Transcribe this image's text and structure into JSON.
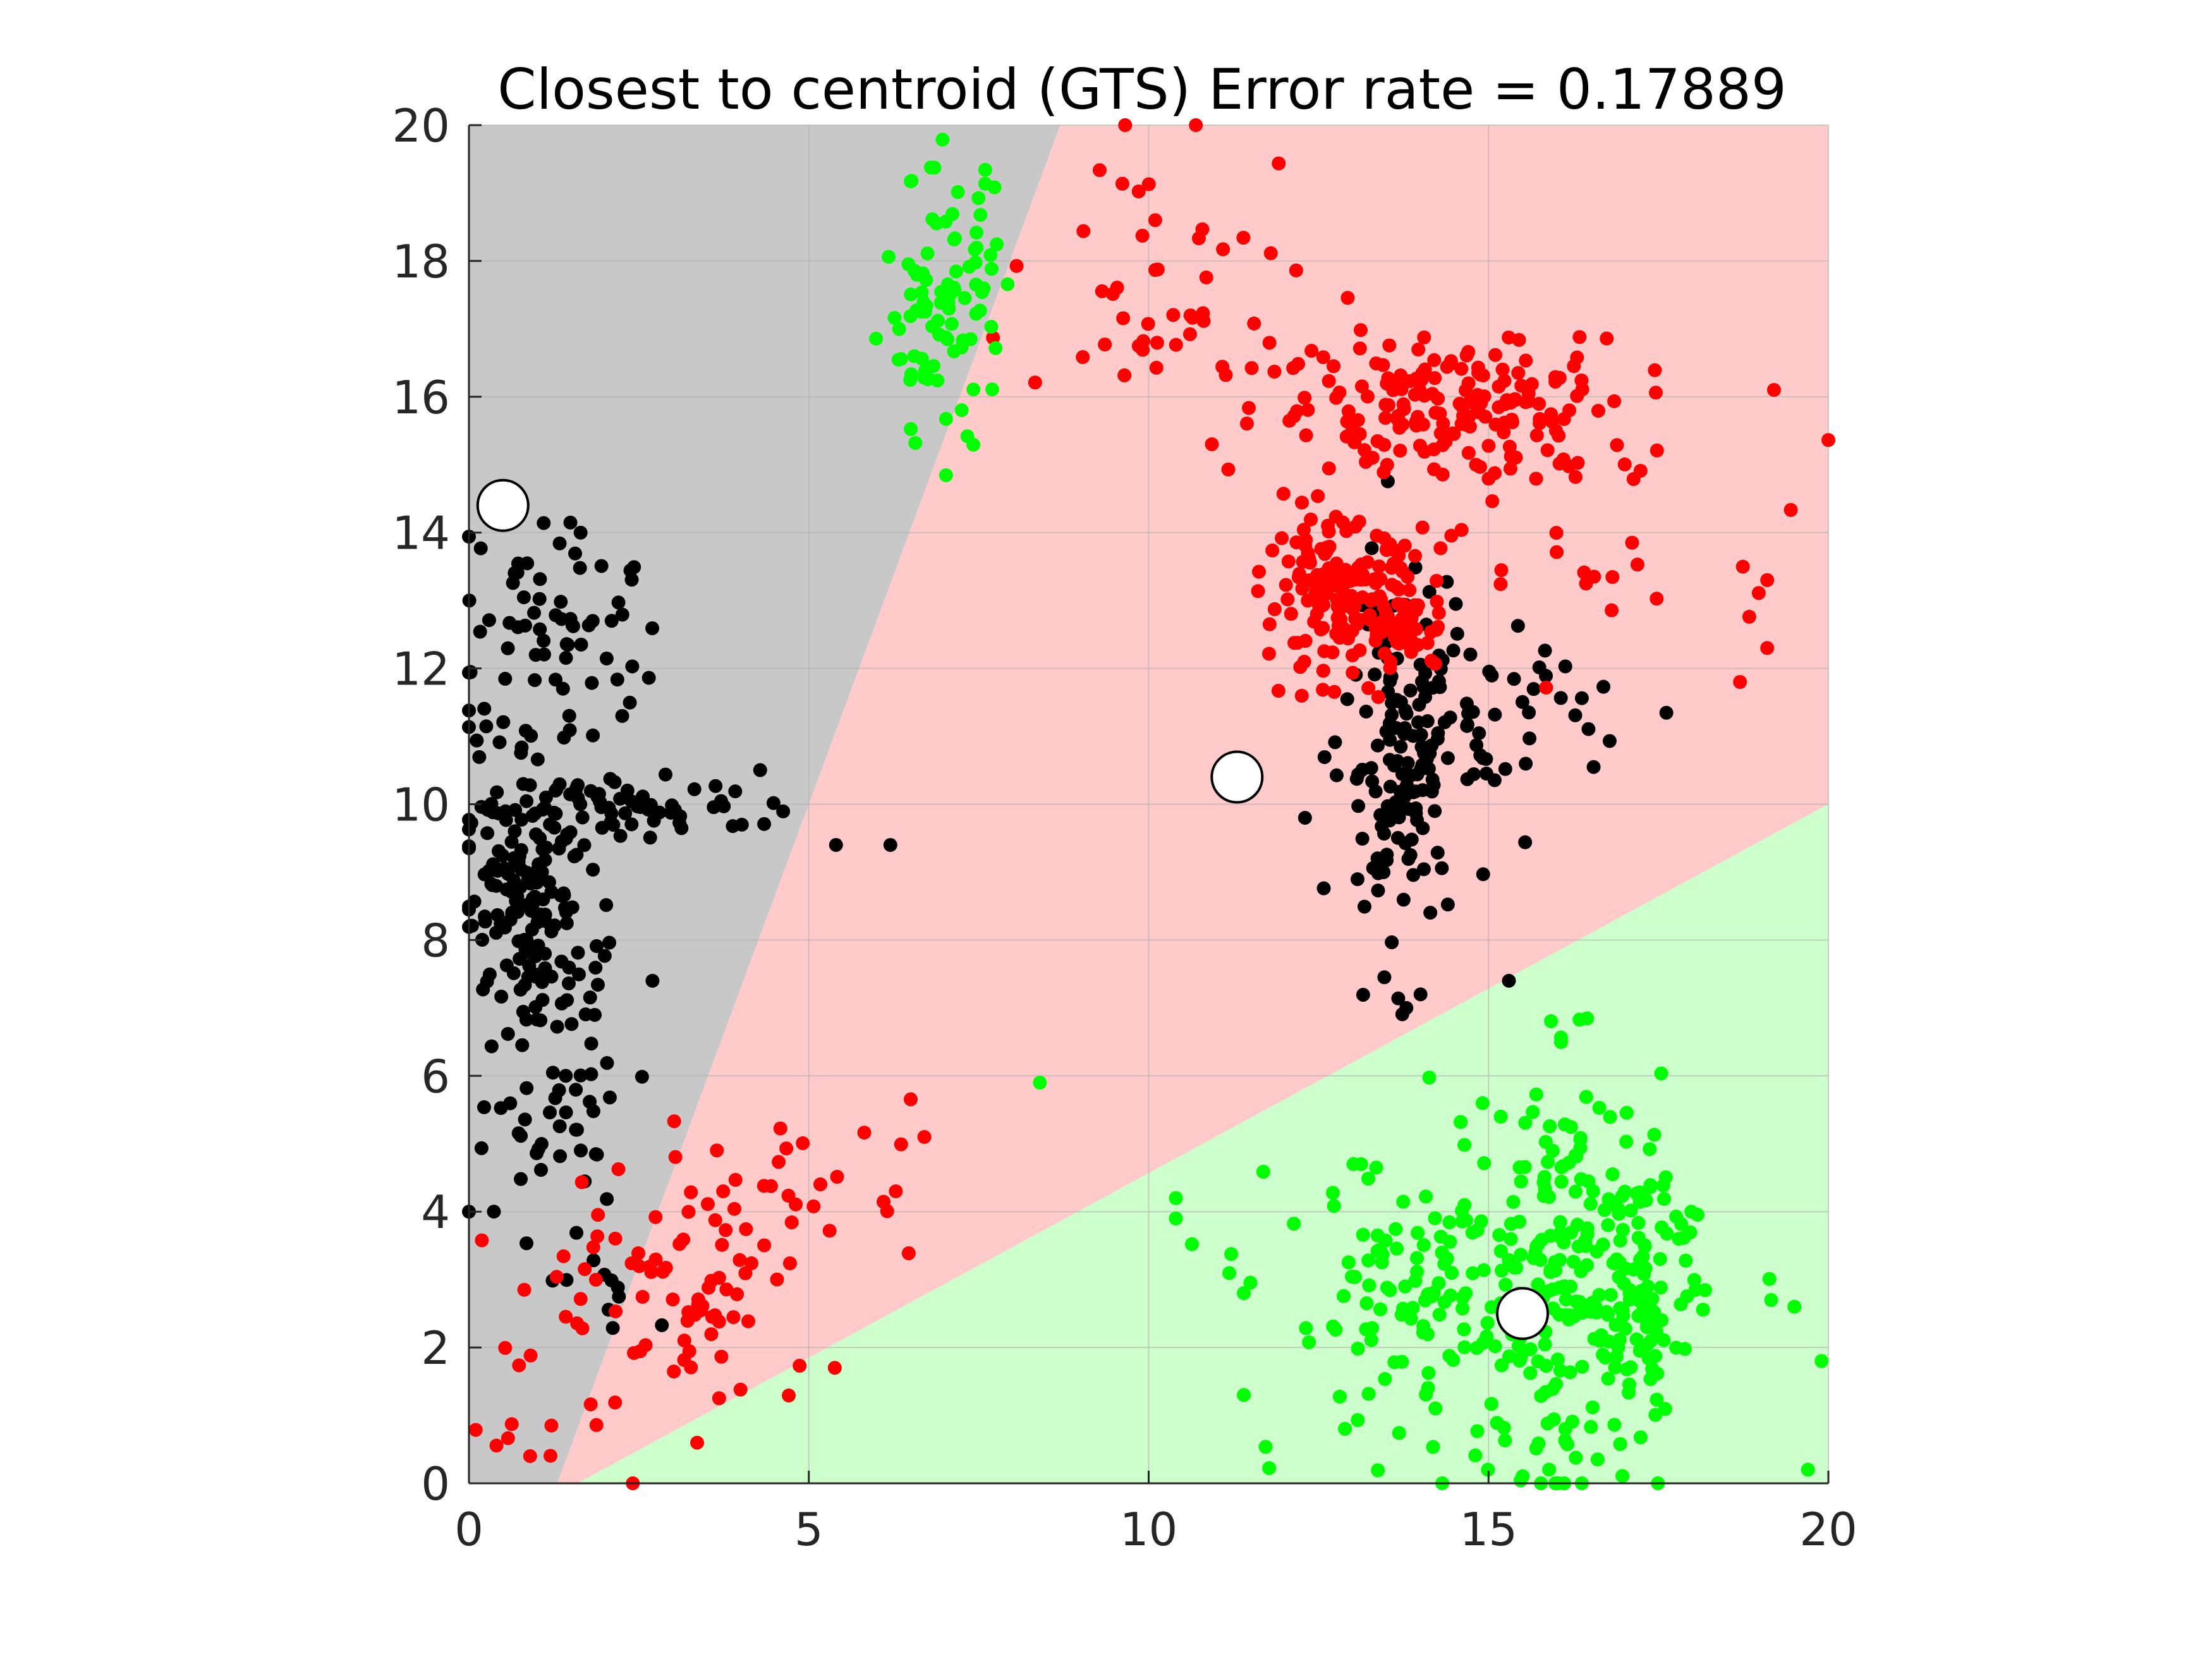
{
  "chart_data": {
    "type": "scatter",
    "title": "Closest to centroid (GTS) Error rate = 0.17889",
    "xlabel": "",
    "ylabel": "",
    "xlim": [
      0,
      20
    ],
    "ylim": [
      0,
      20
    ],
    "xticks": [
      "0",
      "5",
      "10",
      "15",
      "20"
    ],
    "yticks": [
      "0",
      "2",
      "4",
      "6",
      "8",
      "10",
      "12",
      "14",
      "16",
      "18",
      "20"
    ],
    "grid": true,
    "colors": {
      "region_gray": "#c8c8c8",
      "region_red": "#ffcaca",
      "region_green": "#ccffcc",
      "black_class": "#000000",
      "red_class": "#ff0000",
      "green_class": "#00ff00",
      "centroid_fill": "#ffffff",
      "grid": "#b0b0b0",
      "axis": "#262626"
    },
    "decision_regions": [
      {
        "color": "gray",
        "polygon": [
          [
            0,
            0
          ],
          [
            1.3,
            0
          ],
          [
            8.7,
            20
          ],
          [
            0,
            20
          ]
        ]
      },
      {
        "color": "red",
        "polygon": [
          [
            1.3,
            0
          ],
          [
            1.6,
            0
          ],
          [
            20,
            10
          ],
          [
            20,
            20
          ],
          [
            8.7,
            20
          ]
        ]
      },
      {
        "color": "green",
        "polygon": [
          [
            1.6,
            0
          ],
          [
            20,
            0
          ],
          [
            20,
            10
          ]
        ]
      }
    ],
    "centroids": [
      {
        "x": 0.5,
        "y": 14.4
      },
      {
        "x": 11.3,
        "y": 10.4
      },
      {
        "x": 15.5,
        "y": 2.5
      }
    ],
    "clusters": [
      {
        "class": "black",
        "n": 150,
        "center": [
          0.9,
          8.6
        ],
        "spread": [
          0.5,
          0.8
        ]
      },
      {
        "class": "black",
        "n": 60,
        "center": [
          2.6,
          10.0
        ],
        "spread": [
          1.2,
          0.25
        ]
      },
      {
        "class": "black",
        "n": 80,
        "center": [
          1.0,
          12.3
        ],
        "spread": [
          0.7,
          1.0
        ]
      },
      {
        "class": "black",
        "n": 55,
        "center": [
          1.2,
          5.8
        ],
        "spread": [
          0.6,
          0.9
        ]
      },
      {
        "class": "black",
        "n": 12,
        "center": [
          1.8,
          3.0
        ],
        "spread": [
          0.4,
          0.6
        ]
      },
      {
        "class": "black",
        "n": 140,
        "center": [
          13.7,
          10.6
        ],
        "spread": [
          0.45,
          1.4
        ]
      },
      {
        "class": "black",
        "n": 55,
        "center": [
          15.0,
          11.3
        ],
        "spread": [
          1.0,
          0.7
        ]
      },
      {
        "class": "red",
        "n": 45,
        "center": [
          13.8,
          12.6
        ],
        "spread": [
          0.3,
          0.3
        ]
      },
      {
        "class": "red",
        "n": 160,
        "center": [
          12.8,
          13.0
        ],
        "spread": [
          0.55,
          0.55
        ]
      },
      {
        "class": "red",
        "n": 190,
        "center": [
          14.5,
          15.9
        ],
        "spread": [
          1.4,
          0.55
        ]
      },
      {
        "class": "red",
        "n": 45,
        "center": [
          10.3,
          17.7
        ],
        "spread": [
          1.2,
          1.0
        ]
      },
      {
        "class": "red",
        "n": 30,
        "center": [
          16.5,
          13.8
        ],
        "spread": [
          1.6,
          0.9
        ]
      },
      {
        "class": "red",
        "n": 85,
        "center": [
          3.2,
          2.7
        ],
        "spread": [
          1.0,
          1.0
        ]
      },
      {
        "class": "red",
        "n": 20,
        "center": [
          5.2,
          4.6
        ],
        "spread": [
          0.7,
          0.5
        ]
      },
      {
        "class": "red",
        "n": 10,
        "center": [
          0.7,
          1.2
        ],
        "spread": [
          0.4,
          0.5
        ]
      },
      {
        "class": "green",
        "n": 95,
        "center": [
          7.0,
          17.3
        ],
        "spread": [
          0.45,
          1.0
        ]
      },
      {
        "class": "green",
        "n": 180,
        "center": [
          14.5,
          2.6
        ],
        "spread": [
          1.3,
          1.2
        ]
      },
      {
        "class": "green",
        "n": 130,
        "center": [
          16.3,
          3.0
        ],
        "spread": [
          0.5,
          1.6
        ]
      },
      {
        "class": "green",
        "n": 90,
        "center": [
          17.4,
          3.2
        ],
        "spread": [
          0.35,
          1.1
        ]
      }
    ],
    "outliers": [
      {
        "class": "black",
        "x": 5.4,
        "y": 9.4
      },
      {
        "class": "black",
        "x": 6.2,
        "y": 9.4
      },
      {
        "class": "black",
        "x": 2.7,
        "y": 7.4
      },
      {
        "class": "black",
        "x": 0,
        "y": 4.0
      },
      {
        "class": "black",
        "x": 14.0,
        "y": 7.2
      },
      {
        "class": "black",
        "x": 15.3,
        "y": 7.4
      },
      {
        "class": "black",
        "x": 12.3,
        "y": 9.8
      },
      {
        "class": "red",
        "x": 19.2,
        "y": 16.1
      },
      {
        "class": "red",
        "x": 19.1,
        "y": 13.3
      },
      {
        "class": "red",
        "x": 19.1,
        "y": 12.3
      },
      {
        "class": "red",
        "x": 18.7,
        "y": 11.8
      },
      {
        "class": "red",
        "x": 6.7,
        "y": 5.1
      },
      {
        "class": "red",
        "x": 0.9,
        "y": 0.4
      },
      {
        "class": "green",
        "x": 8.4,
        "y": 5.9
      },
      {
        "class": "green",
        "x": 10.4,
        "y": 4.2
      },
      {
        "class": "green",
        "x": 10.4,
        "y": 3.9
      },
      {
        "class": "green",
        "x": 11.4,
        "y": 1.3
      },
      {
        "class": "green",
        "x": 11.4,
        "y": 2.8
      },
      {
        "class": "green",
        "x": 19.9,
        "y": 1.8
      },
      {
        "class": "green",
        "x": 19.7,
        "y": 0.2
      },
      {
        "class": "green",
        "x": 19.5,
        "y": 2.6
      }
    ]
  }
}
